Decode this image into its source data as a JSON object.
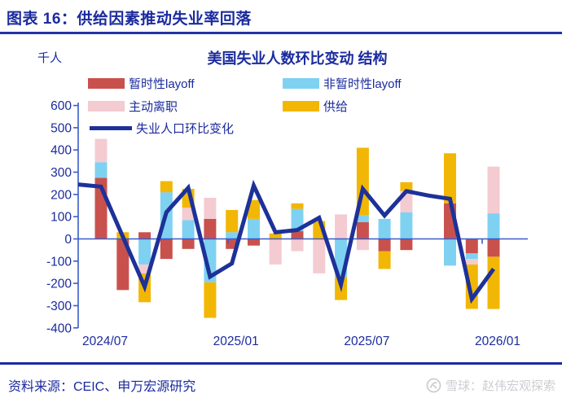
{
  "header": {
    "title": "图表 16：供给因素推动失业率回落"
  },
  "chart_data": {
    "type": "bar",
    "subtype": "stacked-bar-with-line",
    "title": "美国失业人数环比变动 结构",
    "unit_label": "千人",
    "x": [
      "2024/07",
      "2024/08",
      "2024/09",
      "2024/10",
      "2024/11",
      "2024/12",
      "2025/01",
      "2025/02",
      "2025/03",
      "2025/04",
      "2025/05",
      "2025/06",
      "2025/07",
      "2025/08",
      "2025/09",
      "2025/10",
      "2025/11",
      "2025/12",
      "2026/01"
    ],
    "x_tick_labels": [
      "2024/07",
      "2025/01",
      "2025/07",
      "2026/01"
    ],
    "ylim": [
      -400,
      600
    ],
    "y_ticks": [
      600,
      500,
      400,
      300,
      200,
      100,
      0,
      -100,
      -200,
      -300,
      -400
    ],
    "grid": "zero-line-only",
    "legend_position": "top",
    "series": [
      {
        "name": "暂时性layoff",
        "type": "bar",
        "color": "#c9514d",
        "values": [
          275,
          -230,
          30,
          -90,
          -45,
          90,
          -45,
          -30,
          0,
          35,
          0,
          0,
          75,
          -55,
          -50,
          0,
          160,
          -65,
          -80
        ]
      },
      {
        "name": "非暂时性layoff",
        "type": "bar",
        "color": "#7fd1f2",
        "values": [
          70,
          0,
          -115,
          210,
          85,
          -195,
          30,
          90,
          0,
          100,
          0,
          -170,
          30,
          90,
          120,
          0,
          -120,
          -25,
          115
        ]
      },
      {
        "name": "主动离职",
        "type": "bar",
        "color": "#f3cbd1",
        "values": [
          105,
          0,
          -40,
          0,
          55,
          95,
          0,
          0,
          -115,
          -55,
          -155,
          110,
          -50,
          0,
          95,
          0,
          0,
          -25,
          210
        ]
      },
      {
        "name": "供给",
        "type": "bar",
        "color": "#f2b705",
        "values": [
          0,
          30,
          -130,
          50,
          85,
          -160,
          100,
          85,
          25,
          25,
          80,
          -105,
          305,
          -80,
          40,
          0,
          225,
          -200,
          -235
        ]
      },
      {
        "name": "失业人口环比变化",
        "type": "line",
        "color": "#1d3199",
        "edge_start": 245,
        "values": [
          235,
          10,
          -215,
          120,
          230,
          -170,
          -110,
          240,
          30,
          40,
          95,
          -205,
          225,
          105,
          215,
          195,
          180,
          -270,
          -135
        ]
      }
    ],
    "axis_color": "#3a5cc8",
    "tick_label_color": "#1b2b9e"
  },
  "footer": {
    "source": "资料来源：CEIC、申万宏源研究",
    "watermark": "雪球：赵伟宏观探索"
  }
}
